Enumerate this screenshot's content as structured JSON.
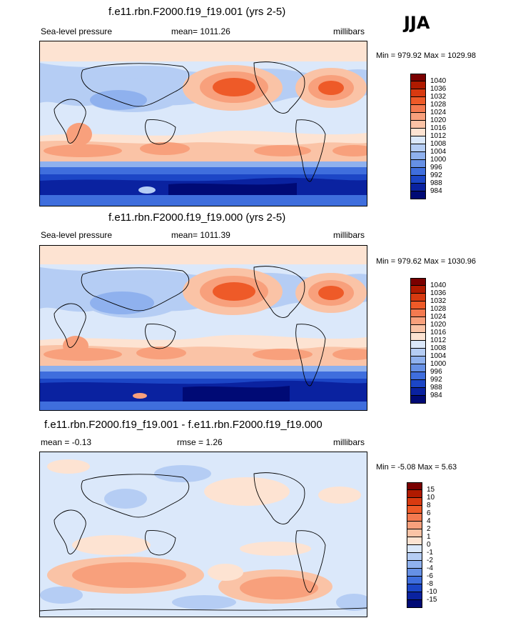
{
  "season": "JJA",
  "panels": [
    {
      "title": "f.e11.rbn.F2000.f19_f19.001 (yrs 2-5)",
      "left": "Sea-level pressure",
      "center": "mean= 1011.26",
      "right": "millibars",
      "minmax": "Min = 979.92 Max = 1029.98"
    },
    {
      "title": "f.e11.rbn.F2000.f19_f19.000 (yrs 2-5)",
      "left": "Sea-level pressure",
      "center": "mean= 1011.39",
      "right": "millibars",
      "minmax": "Min = 979.62 Max = 1030.96"
    },
    {
      "title": "f.e11.rbn.F2000.f19_f19.001 - f.e11.rbn.F2000.f19_f19.000",
      "left": "mean =  -0.13",
      "center": "rmse =   1.26",
      "right": "millibars",
      "minmax": "Min =  -5.08 Max =   5.63"
    }
  ],
  "abs_legend": {
    "labels": [
      "1040",
      "1036",
      "1032",
      "1028",
      "1024",
      "1020",
      "1016",
      "1012",
      "1008",
      "1004",
      "1000",
      "996",
      "992",
      "988",
      "984"
    ],
    "colors": [
      "#7a0000",
      "#b01a00",
      "#d83a10",
      "#ee5a28",
      "#f47a50",
      "#f8a07c",
      "#fac3a6",
      "#fde3d2",
      "#dbe8fa",
      "#b5cdf4",
      "#8fb1ee",
      "#6690e5",
      "#3f6edd",
      "#1c46c6",
      "#0a22a0",
      "#000a75"
    ]
  },
  "diff_legend": {
    "labels": [
      "15",
      "10",
      "8",
      "6",
      "4",
      "2",
      "1",
      "0",
      "-1",
      "-2",
      "-4",
      "-6",
      "-8",
      "-10",
      "-15"
    ],
    "colors": [
      "#7a0000",
      "#b01a00",
      "#d83a10",
      "#ee5a28",
      "#f47a50",
      "#f8a07c",
      "#fac3a6",
      "#fde3d2",
      "#dbe8fa",
      "#b5cdf4",
      "#8fb1ee",
      "#6690e5",
      "#3f6edd",
      "#1c46c6",
      "#0a22a0",
      "#000a75"
    ]
  }
}
